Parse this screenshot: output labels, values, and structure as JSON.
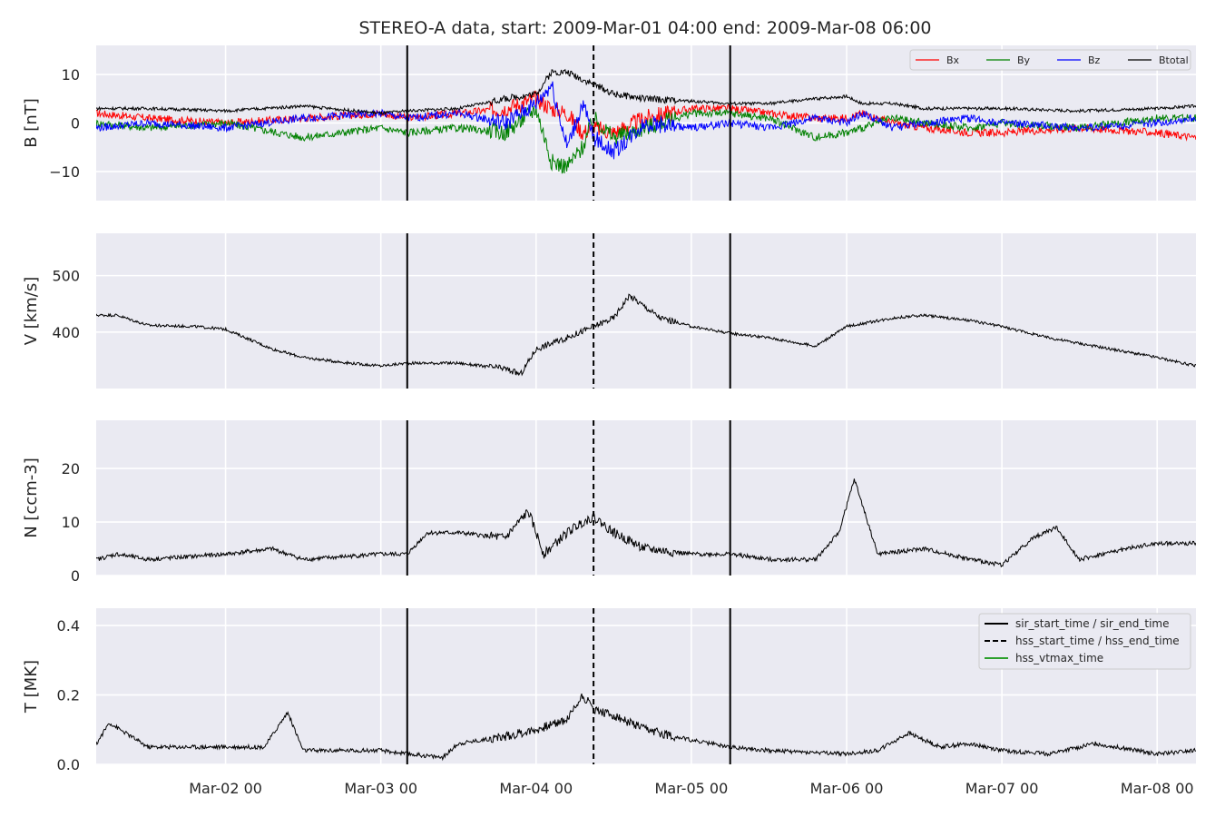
{
  "title": "STEREO-A data, start: 2009-Mar-01 04:00  end: 2009-Mar-08 06:00",
  "colors": {
    "background": "#eaeaf2",
    "grid": "#ffffff",
    "text": "#262626",
    "bx": "#ff0000",
    "by": "#008000",
    "bz": "#0000ff",
    "btotal": "#000000",
    "sir": "#000000",
    "hss": "#000000",
    "vtmax": "#2ca02c"
  },
  "x_axis": {
    "tick_labels": [
      "Mar-02 00",
      "Mar-03 00",
      "Mar-04 00",
      "Mar-05 00",
      "Mar-06 00",
      "Mar-07 00",
      "Mar-08 00"
    ],
    "tick_times_days": [
      1,
      2,
      3,
      4,
      5,
      6,
      7
    ],
    "range_days": [
      0.1667,
      7.25
    ]
  },
  "markers": {
    "sir_start_time": "2009-Mar-03 04:00",
    "sir_start_days": 2.17,
    "hss_start_time": "2009-Mar-04 08:00",
    "hss_start_days": 3.37,
    "sir_end_time": "2009-Mar-05 05:00",
    "sir_end_days": 4.25
  },
  "legend_top": [
    {
      "label": "Bx",
      "color": "#ff0000"
    },
    {
      "label": "By",
      "color": "#008000"
    },
    {
      "label": "Bz",
      "color": "#0000ff"
    },
    {
      "label": "Btotal",
      "color": "#000000"
    }
  ],
  "legend_bottom": [
    {
      "label": "sir_start_time / sir_end_time",
      "style": "solid",
      "color": "#000000"
    },
    {
      "label": "hss_start_time / hss_end_time",
      "style": "dashed",
      "color": "#000000"
    },
    {
      "label": "hss_vtmax_time",
      "style": "solid",
      "color": "#2ca02c"
    }
  ],
  "chart_data": [
    {
      "type": "line",
      "ylabel": "B [nT]",
      "ylim": [
        -16,
        16
      ],
      "yticks": [
        -10,
        0,
        10
      ],
      "ytick_labels": [
        "−10",
        "0",
        "10"
      ],
      "grid": true,
      "legend_position": "top-right",
      "x_days": [
        0.17,
        0.5,
        1,
        1.5,
        2,
        2.17,
        2.5,
        2.8,
        3,
        3.1,
        3.2,
        3.3,
        3.37,
        3.5,
        3.7,
        4,
        4.25,
        4.5,
        4.8,
        5,
        5.1,
        5.3,
        5.5,
        5.8,
        6,
        6.5,
        7,
        7.25
      ],
      "series": [
        {
          "name": "Bx",
          "values": [
            2,
            1,
            0,
            1,
            2,
            1,
            2,
            3,
            5,
            3,
            2,
            -2,
            -1,
            -2,
            1,
            3,
            3,
            2,
            1,
            1,
            2,
            0,
            -1,
            -2,
            -2,
            -1,
            -2,
            -3
          ]
        },
        {
          "name": "By",
          "values": [
            0,
            -1,
            0,
            -3,
            -1,
            -2,
            -1,
            -2,
            3,
            -8,
            -9,
            -5,
            1,
            -3,
            -1,
            2,
            2,
            1,
            -3,
            -2,
            -1,
            1,
            0,
            -1,
            0,
            -1,
            1,
            1
          ]
        },
        {
          "name": "Bz",
          "values": [
            -1,
            0,
            -1,
            1,
            2,
            1,
            2,
            0,
            4,
            8,
            -5,
            4,
            -3,
            -6,
            0,
            -1,
            0,
            -1,
            1,
            0,
            2,
            -1,
            0,
            1,
            0,
            -1,
            0,
            1
          ]
        },
        {
          "name": "Btotal",
          "values": [
            3,
            3,
            2.5,
            3.5,
            2,
            2.5,
            3,
            5,
            6,
            10.5,
            10.5,
            9,
            8,
            6,
            5,
            4.5,
            4,
            4,
            5,
            5.5,
            4,
            4,
            3,
            3,
            3,
            2.5,
            3,
            3.5
          ]
        }
      ]
    },
    {
      "type": "line",
      "ylabel": "V [km/s]",
      "ylim": [
        300,
        575
      ],
      "yticks": [
        400,
        500
      ],
      "ytick_labels": [
        "400",
        "500"
      ],
      "grid": true,
      "x_days": [
        0.17,
        0.3,
        0.5,
        0.8,
        1,
        1.3,
        1.5,
        1.8,
        2,
        2.17,
        2.5,
        2.8,
        2.9,
        3,
        3.2,
        3.37,
        3.5,
        3.6,
        3.8,
        4,
        4.25,
        4.5,
        4.8,
        5,
        5.3,
        5.5,
        5.8,
        6,
        6.3,
        6.6,
        7,
        7.25
      ],
      "series": [
        {
          "name": "",
          "values": [
            430,
            430,
            412,
            410,
            405,
            370,
            355,
            345,
            340,
            345,
            345,
            335,
            325,
            370,
            390,
            410,
            425,
            465,
            425,
            410,
            398,
            390,
            375,
            410,
            425,
            430,
            420,
            410,
            390,
            375,
            355,
            340
          ]
        }
      ]
    },
    {
      "type": "line",
      "ylabel": "N [ccm-3]",
      "ylim": [
        0,
        29
      ],
      "yticks": [
        0,
        10,
        20
      ],
      "ytick_labels": [
        "0",
        "10",
        "20"
      ],
      "grid": true,
      "x_days": [
        0.17,
        0.3,
        0.5,
        1,
        1.3,
        1.5,
        2,
        2.17,
        2.3,
        2.5,
        2.8,
        2.95,
        3.05,
        3.2,
        3.3,
        3.37,
        3.5,
        3.7,
        4,
        4.25,
        4.5,
        4.8,
        4.95,
        5.05,
        5.2,
        5.5,
        5.8,
        6,
        6.2,
        6.35,
        6.5,
        6.8,
        7,
        7.25
      ],
      "series": [
        {
          "name": "",
          "values": [
            3,
            4,
            3,
            4,
            5,
            3,
            4,
            4,
            8,
            8,
            7,
            12,
            4,
            8,
            10,
            11,
            8,
            5,
            4,
            4,
            3,
            3,
            8,
            18,
            4,
            5,
            3,
            2,
            7,
            9,
            3,
            5,
            6,
            6
          ]
        }
      ]
    },
    {
      "type": "line",
      "ylabel": "T [MK]",
      "ylim": [
        0,
        0.45
      ],
      "yticks": [
        0,
        0.2,
        0.4
      ],
      "ytick_labels": [
        "0.0",
        "0.2",
        "0.4"
      ],
      "grid": true,
      "legend_position": "top-right",
      "x_days": [
        0.17,
        0.25,
        0.5,
        1,
        1.25,
        1.4,
        1.5,
        2,
        2.17,
        2.4,
        2.5,
        2.8,
        3,
        3.2,
        3.3,
        3.37,
        3.5,
        3.7,
        4,
        4.25,
        4.5,
        5,
        5.2,
        5.4,
        5.6,
        5.8,
        6,
        6.3,
        6.6,
        7,
        7.25
      ],
      "series": [
        {
          "name": "",
          "values": [
            0.06,
            0.12,
            0.05,
            0.05,
            0.05,
            0.15,
            0.04,
            0.04,
            0.03,
            0.02,
            0.06,
            0.08,
            0.1,
            0.13,
            0.2,
            0.16,
            0.14,
            0.1,
            0.07,
            0.05,
            0.04,
            0.03,
            0.04,
            0.09,
            0.05,
            0.06,
            0.04,
            0.03,
            0.06,
            0.03,
            0.04
          ]
        }
      ]
    }
  ]
}
